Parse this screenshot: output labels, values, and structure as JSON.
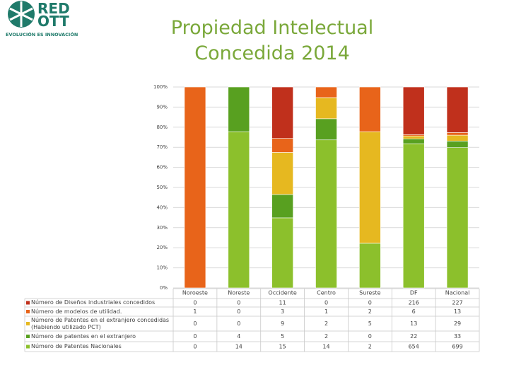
{
  "logo": {
    "name_lines": [
      "RED",
      "OTT"
    ],
    "tagline": "EVOLUCIÓN ES INNOVACIÓN"
  },
  "chart_data": {
    "type": "stacked-bar-100",
    "title": "Propiedad Intelectual Concedida 2014",
    "categories": [
      "Noroeste",
      "Noreste",
      "Occidente",
      "Centro",
      "Sureste",
      "DF",
      "Nacional"
    ],
    "series": [
      {
        "name": "Número de Diseños industriales concedidos",
        "color": "#c0301c",
        "values": [
          0,
          0,
          11,
          0,
          0,
          216,
          227
        ]
      },
      {
        "name": "Número de modelos de utilidad.",
        "color": "#e8641a",
        "values": [
          1,
          0,
          3,
          1,
          2,
          6,
          13
        ]
      },
      {
        "name": "Número de Patentes en el extranjero concedidas (Habiendo utilizado PCT)",
        "color": "#e6b820",
        "values": [
          0,
          0,
          9,
          2,
          5,
          13,
          29
        ]
      },
      {
        "name": "Número de patentes en el extranjero",
        "color": "#58a020",
        "values": [
          0,
          4,
          5,
          2,
          0,
          22,
          33
        ]
      },
      {
        "name": "Número de Patentes Nacionales",
        "color": "#8cc02c",
        "values": [
          0,
          14,
          15,
          14,
          2,
          654,
          699
        ]
      }
    ],
    "ylim": [
      0,
      100
    ],
    "yticks": [
      {
        "value": 0,
        "label": "0%"
      },
      {
        "value": 10,
        "label": "10%"
      },
      {
        "value": 20,
        "label": "20%"
      },
      {
        "value": 30,
        "label": "30%"
      },
      {
        "value": 40,
        "label": "40%"
      },
      {
        "value": 50,
        "label": "50%"
      },
      {
        "value": 60,
        "label": "60%"
      },
      {
        "value": 70,
        "label": "70%"
      },
      {
        "value": 80,
        "label": "80%"
      },
      {
        "value": 90,
        "label": "90%"
      },
      {
        "value": 100,
        "label": "100%"
      }
    ],
    "grid": true
  }
}
